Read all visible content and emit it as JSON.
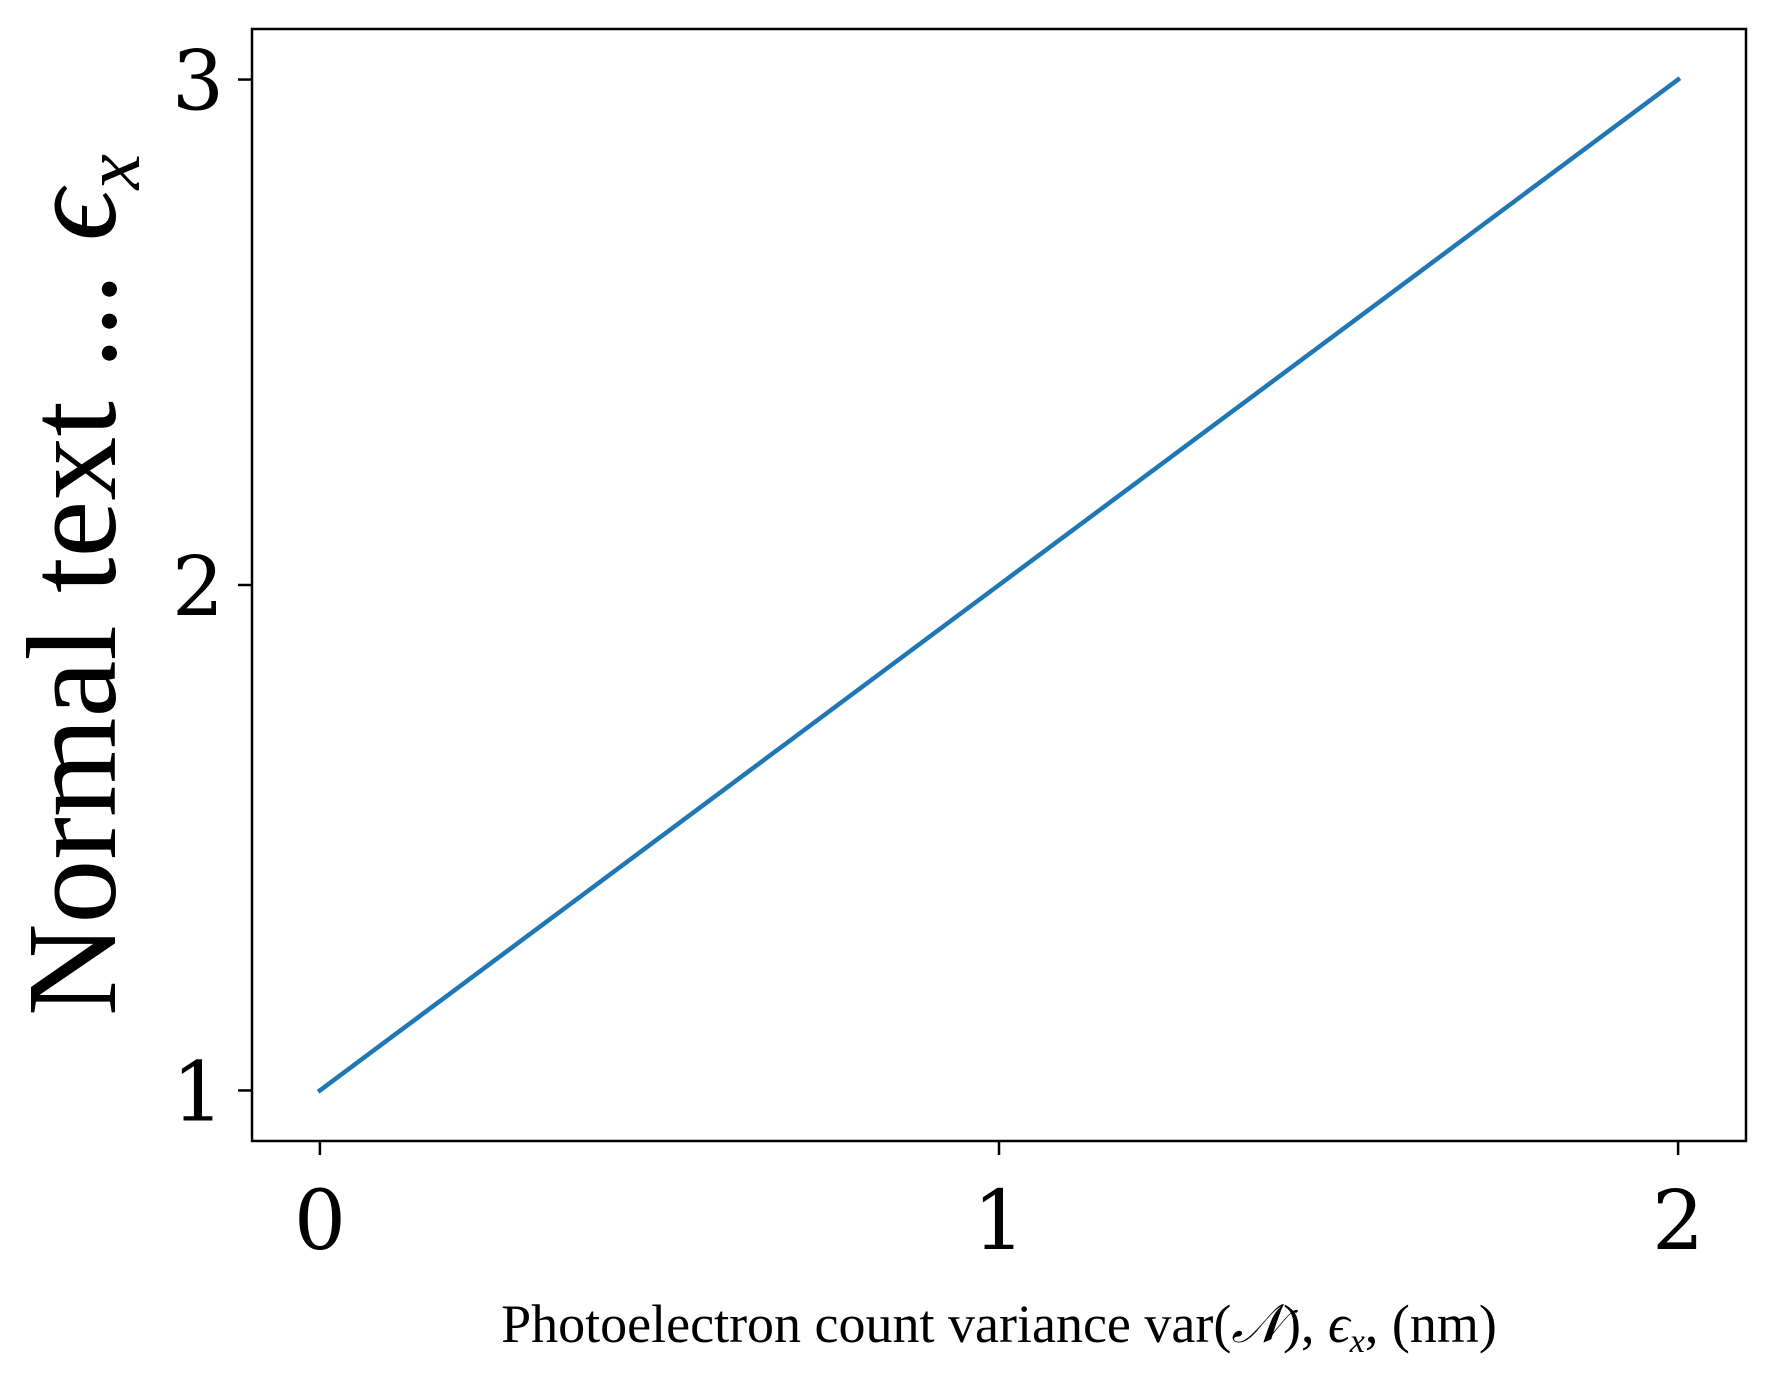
{
  "chart_data": {
    "type": "line",
    "title": "",
    "xlabel": "Photoelectron count variance var(𝒩), ϵₓ, (nm)",
    "xlabel_parts": {
      "prefix": "Photoelectron count variance var(",
      "symbol_n": "𝒩",
      "middle": "), ",
      "epsilon": "ϵ",
      "subscript": "x",
      "suffix": ", (nm)"
    },
    "ylabel": "Normal text ... ϵₓ",
    "ylabel_parts": {
      "text": "Normal text ... ",
      "epsilon": "ϵ",
      "subscript": "x"
    },
    "xlim": [
      -0.1,
      2.1
    ],
    "ylim": [
      0.9,
      3.1
    ],
    "xticks": [
      0,
      1,
      2
    ],
    "xtick_labels": [
      "0",
      "1",
      "2"
    ],
    "yticks": [
      1,
      2,
      3
    ],
    "ytick_labels": [
      "1",
      "2",
      "3"
    ],
    "grid": false,
    "legend": "none",
    "series": [
      {
        "x": [
          0,
          1,
          2
        ],
        "values": [
          1,
          2,
          3
        ],
        "color": "#1f77b4"
      }
    ]
  }
}
